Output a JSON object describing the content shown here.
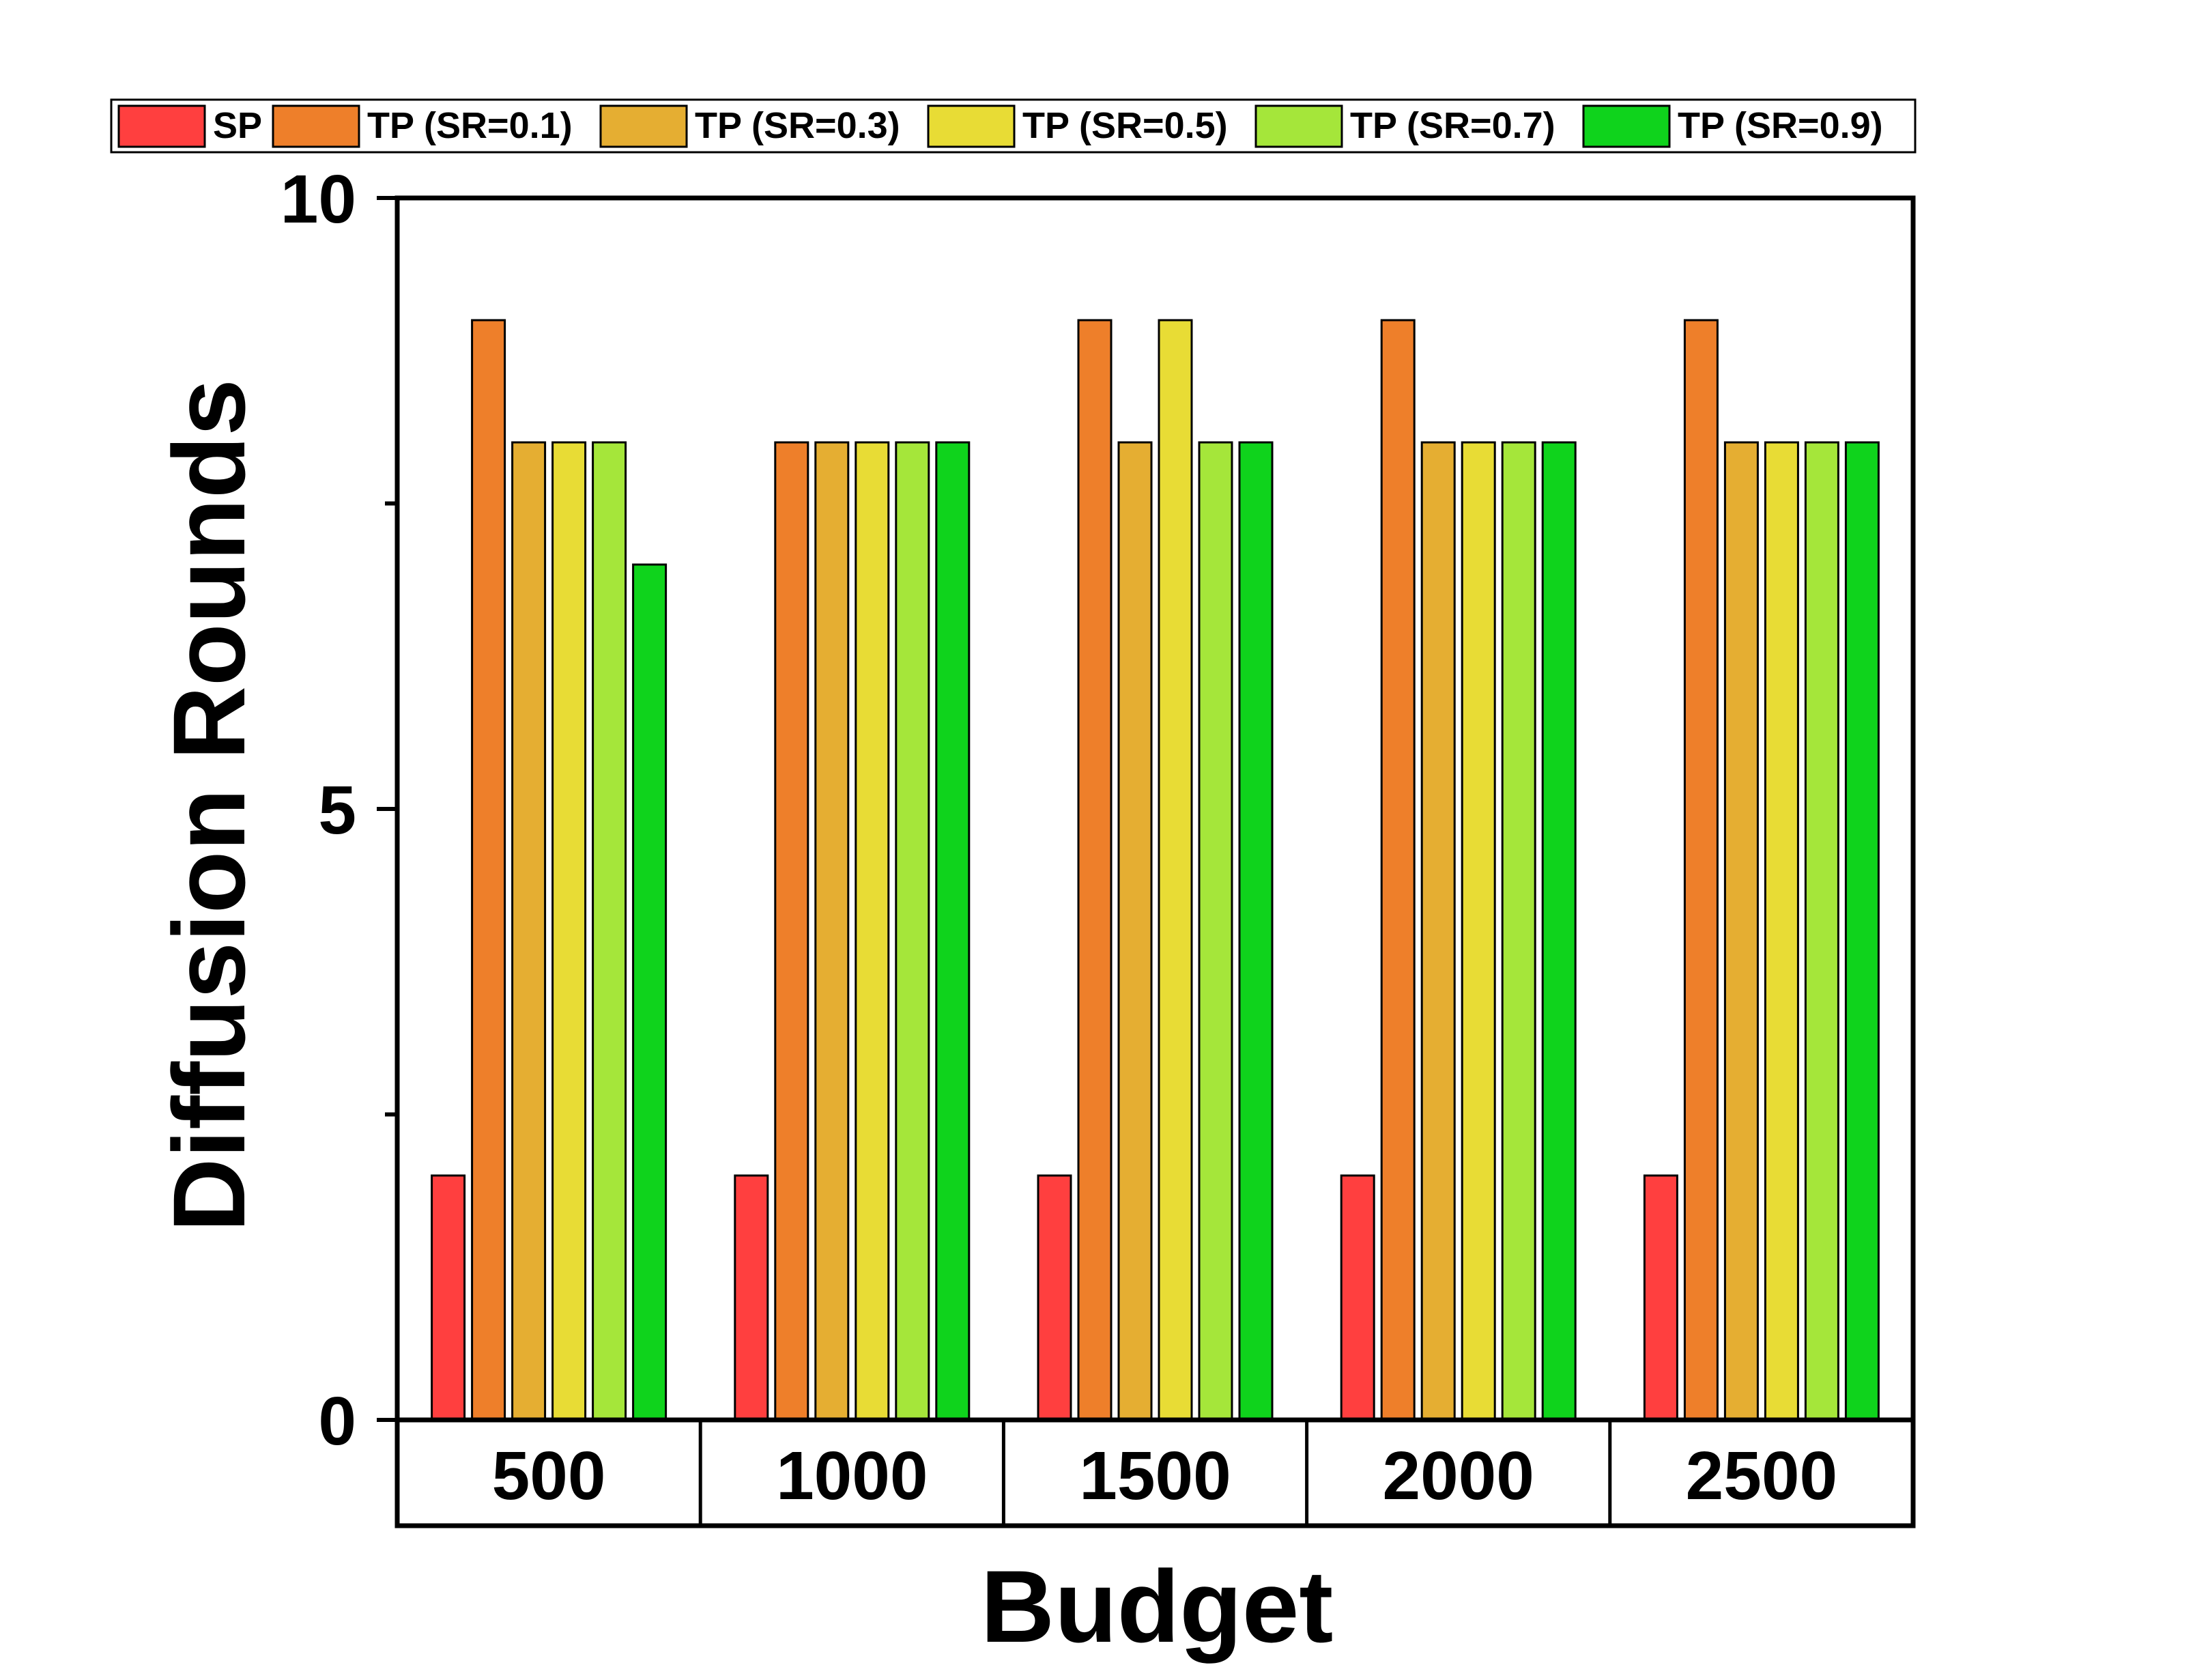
{
  "chart_data": {
    "type": "bar",
    "title": "",
    "xlabel": "Budget",
    "ylabel": "Diffusion Rounds",
    "categories": [
      "500",
      "1000",
      "1500",
      "2000",
      "2500"
    ],
    "ylim": [
      0,
      10
    ],
    "yticks": [
      0,
      5,
      10
    ],
    "ytick_labels": [
      "0",
      "5",
      "10"
    ],
    "legend_position": "top",
    "grid": false,
    "series": [
      {
        "name": "SP",
        "color": "#FF3F3F",
        "values": [
          2,
          2,
          2,
          2,
          2
        ]
      },
      {
        "name": "TP (SR=0.1)",
        "color": "#EE7F2A",
        "values": [
          9,
          8,
          9,
          9,
          9
        ]
      },
      {
        "name": "TP (SR=0.3)",
        "color": "#E5AE32",
        "values": [
          8,
          8,
          8,
          8,
          8
        ]
      },
      {
        "name": "TP (SR=0.5)",
        "color": "#E8DC35",
        "values": [
          8,
          8,
          9,
          8,
          8
        ]
      },
      {
        "name": "TP (SR=0.7)",
        "color": "#A5E63A",
        "values": [
          8,
          8,
          8,
          8,
          8
        ]
      },
      {
        "name": "TP (SR=0.9)",
        "color": "#0FD31C",
        "values": [
          7,
          8,
          8,
          8,
          8
        ]
      }
    ]
  }
}
